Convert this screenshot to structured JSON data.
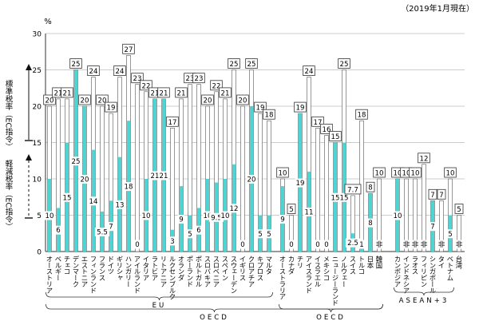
{
  "header": {
    "note": "（2019年1月現在）"
  },
  "chart_data": {
    "type": "bar",
    "unit": "%",
    "ylim": [
      0,
      30
    ],
    "yticks": [
      0,
      5,
      10,
      15,
      20,
      25,
      30
    ],
    "grid": true,
    "axis_label_standard": "標準税率（EC指令）",
    "axis_label_reduced": "軽減税率（EC指令）",
    "colors": {
      "standard": "#ffffff",
      "reduced": "#4fd4d4",
      "edge": "#555555"
    },
    "categories": [
      "オーストリア",
      "ベルギー",
      "チェコ",
      "デンマーク",
      "エストニア",
      "フィンランド",
      "フランス",
      "ドイツ",
      "ギリシャ",
      "ハンガリー",
      "アイルランド",
      "イタリア",
      "ラトビア",
      "リトアニア",
      "ルクセンブルク",
      "オランダ",
      "ポーランド",
      "ポルトガル",
      "スロバキア",
      "スロベニア",
      "スペイン",
      "スウェーデン",
      "イギリス",
      "クロアチア",
      "キプロス",
      "マルタ",
      "オーストラリア",
      "カナダ",
      "チリ",
      "アイスランド",
      "イスラエル",
      "メキシコ",
      "ニュージーランド",
      "ノルウェー",
      "スイス",
      "トルコ",
      "日本",
      "韓国",
      "カンボジア",
      "インドネシア",
      "ラオス",
      "フィリピン",
      "シンガポール",
      "タイ",
      "ベトナム",
      "台湾"
    ],
    "series": [
      {
        "label_key": "standard",
        "values": [
          20,
          21,
          21,
          25,
          20,
          24,
          20,
          19,
          24,
          27,
          23,
          22,
          21,
          21,
          17,
          21,
          23,
          23,
          20,
          22,
          21,
          25,
          20,
          25,
          19,
          18,
          10,
          5,
          19,
          24,
          17,
          16,
          15,
          25,
          7.7,
          18,
          8,
          10,
          10,
          10,
          10,
          12,
          7,
          7,
          10,
          5
        ],
        "value_labels": [
          "20",
          "21",
          "21",
          "25",
          "20",
          "24",
          "20",
          "19",
          "24",
          "27",
          "23",
          "22",
          "21",
          "21",
          "17",
          "21",
          "23",
          "23",
          "20",
          "22",
          "21",
          "25",
          "20",
          "25",
          "19",
          "18",
          "10",
          "5",
          "19",
          "24",
          "17",
          "16",
          "15",
          "25",
          "7.7",
          "18",
          "8",
          "10",
          "10",
          "10",
          "10",
          "12",
          "7",
          "7",
          "10",
          "5"
        ]
      },
      {
        "label_key": "reduced",
        "values": [
          10,
          6,
          15,
          25,
          20,
          14,
          5.5,
          7,
          13,
          18,
          0,
          10,
          21,
          21,
          3,
          9,
          5,
          6,
          10,
          9.5,
          10,
          12,
          0,
          20,
          5,
          5,
          9,
          0,
          19,
          11,
          0,
          0,
          15,
          15,
          2.5,
          1,
          8,
          0,
          10,
          0,
          0,
          0,
          7,
          0,
          5,
          0
        ],
        "value_labels": [
          "10",
          "6",
          "15",
          "25",
          "20",
          "14",
          "5.5",
          "7",
          "13",
          "18",
          "0",
          "10",
          "21",
          "21",
          "3",
          "9",
          "5",
          "6",
          "10",
          "9.5",
          "10",
          "12",
          "0",
          "20",
          "5",
          "5",
          "9",
          "0",
          "19",
          "11",
          "0",
          "0",
          "15",
          "15",
          "2.5",
          "1",
          "8",
          "非",
          "10",
          "非",
          "非",
          "非",
          "7",
          "非",
          "5",
          "非"
        ]
      }
    ],
    "groups": [
      {
        "label": "EU",
        "from": 0,
        "to": 25
      },
      {
        "label": "OECD",
        "from": 0,
        "to": 37
      },
      {
        "label": "ASEAN+3",
        "from": 38,
        "to": 44
      },
      {
        "label": "OECD",
        "from": 26,
        "to": 37
      }
    ]
  }
}
